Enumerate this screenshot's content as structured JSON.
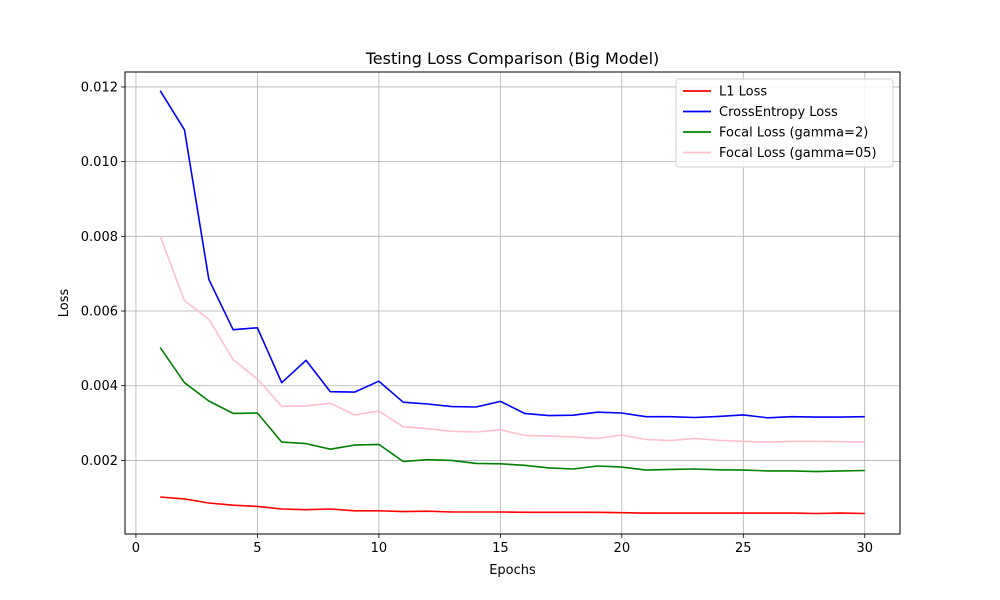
{
  "chart_data": {
    "type": "line",
    "title": "Testing Loss Comparison (Big Model)",
    "xlabel": "Epochs",
    "ylabel": "Loss",
    "xlim": [
      -0.45,
      31.45
    ],
    "ylim": [
      3e-05,
      0.0124
    ],
    "xticks": [
      0,
      5,
      10,
      15,
      20,
      25,
      30
    ],
    "xtick_labels": [
      "0",
      "5",
      "10",
      "15",
      "20",
      "25",
      "30"
    ],
    "yticks": [
      0.002,
      0.004,
      0.006,
      0.008,
      0.01,
      0.012
    ],
    "ytick_labels": [
      "0.002",
      "0.004",
      "0.006",
      "0.008",
      "0.010",
      "0.012"
    ],
    "grid": true,
    "legend_position": "top-right",
    "x": [
      1,
      2,
      3,
      4,
      5,
      6,
      7,
      8,
      9,
      10,
      11,
      12,
      13,
      14,
      15,
      16,
      17,
      18,
      19,
      20,
      21,
      22,
      23,
      24,
      25,
      26,
      27,
      28,
      29,
      30
    ],
    "series": [
      {
        "name": "L1 Loss",
        "color": "#ff0000",
        "values": [
          0.00102,
          0.00097,
          0.00086,
          0.0008,
          0.00077,
          0.0007,
          0.00068,
          0.0007,
          0.00065,
          0.00065,
          0.00063,
          0.00064,
          0.00062,
          0.00062,
          0.00062,
          0.00061,
          0.00061,
          0.00061,
          0.00061,
          0.0006,
          0.00059,
          0.00059,
          0.00059,
          0.00059,
          0.00059,
          0.00059,
          0.00059,
          0.00058,
          0.00059,
          0.00058
        ]
      },
      {
        "name": "CrossEntropy Loss",
        "color": "#0000ff",
        "values": [
          0.0119,
          0.01085,
          0.00685,
          0.0055,
          0.00555,
          0.00408,
          0.00468,
          0.00384,
          0.00383,
          0.00412,
          0.00356,
          0.00351,
          0.00344,
          0.00343,
          0.00358,
          0.00326,
          0.0032,
          0.00321,
          0.00329,
          0.00327,
          0.00317,
          0.00317,
          0.00315,
          0.00318,
          0.00322,
          0.00314,
          0.00317,
          0.00316,
          0.00316,
          0.00317
        ]
      },
      {
        "name": "Focal Loss (gamma=2)",
        "color": "#008000",
        "values": [
          0.00502,
          0.00408,
          0.00359,
          0.00326,
          0.00327,
          0.00249,
          0.00245,
          0.0023,
          0.00241,
          0.00243,
          0.00197,
          0.00202,
          0.002,
          0.00192,
          0.00191,
          0.00187,
          0.0018,
          0.00177,
          0.00185,
          0.00182,
          0.00174,
          0.00176,
          0.00177,
          0.00175,
          0.00174,
          0.00172,
          0.00172,
          0.0017,
          0.00172,
          0.00173
        ]
      },
      {
        "name": "Focal Loss (gamma=05)",
        "color": "#ffc0cb",
        "values": [
          0.008,
          0.00628,
          0.00578,
          0.0047,
          0.00418,
          0.00345,
          0.00346,
          0.00353,
          0.00322,
          0.00332,
          0.0029,
          0.00285,
          0.00278,
          0.00276,
          0.00282,
          0.00267,
          0.00265,
          0.00263,
          0.00259,
          0.00268,
          0.00256,
          0.00253,
          0.00259,
          0.00254,
          0.00251,
          0.00249,
          0.00251,
          0.00251,
          0.0025,
          0.00249
        ]
      }
    ]
  }
}
